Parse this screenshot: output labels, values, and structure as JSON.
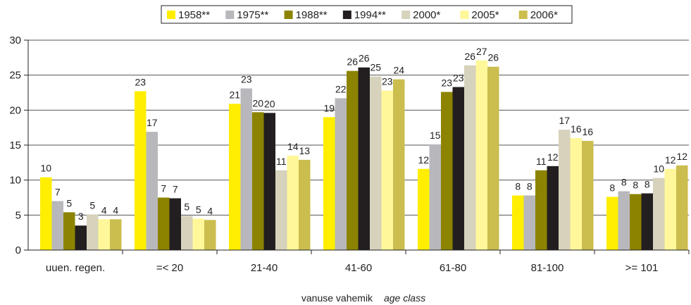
{
  "chart_data": {
    "type": "bar",
    "categories": [
      "uuen. regen.",
      "=< 20",
      "21-40",
      "41-60",
      "61-80",
      "81-100",
      ">= 101"
    ],
    "series": [
      {
        "name": "1958**",
        "color": "#ffee00",
        "values": [
          10.4,
          22.7,
          20.9,
          19.0,
          11.6,
          7.8,
          7.6
        ]
      },
      {
        "name": "1975**",
        "color": "#b8b8bc",
        "values": [
          7.0,
          16.9,
          23.1,
          21.7,
          15.1,
          7.8,
          8.4
        ]
      },
      {
        "name": "1988**",
        "color": "#8c8400",
        "values": [
          5.4,
          7.5,
          19.7,
          25.6,
          22.6,
          11.4,
          8.0
        ]
      },
      {
        "name": "1994**",
        "color": "#231f20",
        "values": [
          3.5,
          7.4,
          19.6,
          26.1,
          23.3,
          12.0,
          8.1
        ]
      },
      {
        "name": "2000*",
        "color": "#d6d2bc",
        "values": [
          5.1,
          4.9,
          11.4,
          24.8,
          26.4,
          17.2,
          10.3
        ]
      },
      {
        "name": "2005*",
        "color": "#fff799",
        "values": [
          4.4,
          4.5,
          13.5,
          22.8,
          27.1,
          16.0,
          11.6
        ]
      },
      {
        "name": "2006*",
        "color": "#cbbd4e",
        "values": [
          4.4,
          4.3,
          12.9,
          24.4,
          26.2,
          15.6,
          12.1
        ]
      }
    ],
    "data_labels": [
      [
        "10",
        "7",
        "5",
        "3",
        "5",
        "4",
        "4"
      ],
      [
        "23",
        "17",
        "7",
        "7",
        "5",
        "5",
        "4"
      ],
      [
        "21",
        "23",
        "20",
        "20",
        "11",
        "14",
        "13"
      ],
      [
        "19",
        "22",
        "26",
        "26",
        "25",
        "23",
        "24"
      ],
      [
        "12",
        "15",
        "23",
        "23",
        "26",
        "27",
        "26"
      ],
      [
        "8",
        "8",
        "11",
        "12",
        "17",
        "16",
        "16"
      ],
      [
        "8",
        "8",
        "8",
        "8",
        "10",
        "12",
        "12"
      ]
    ],
    "yticks": [
      "0",
      "5",
      "10",
      "15",
      "20",
      "25",
      "30"
    ],
    "ylim": [
      0,
      30
    ],
    "xlabel_main": "vanuse vahemik",
    "xlabel_sub": "age class",
    "title": "",
    "ylabel": "",
    "grid": true,
    "legend_position": "top-center"
  }
}
